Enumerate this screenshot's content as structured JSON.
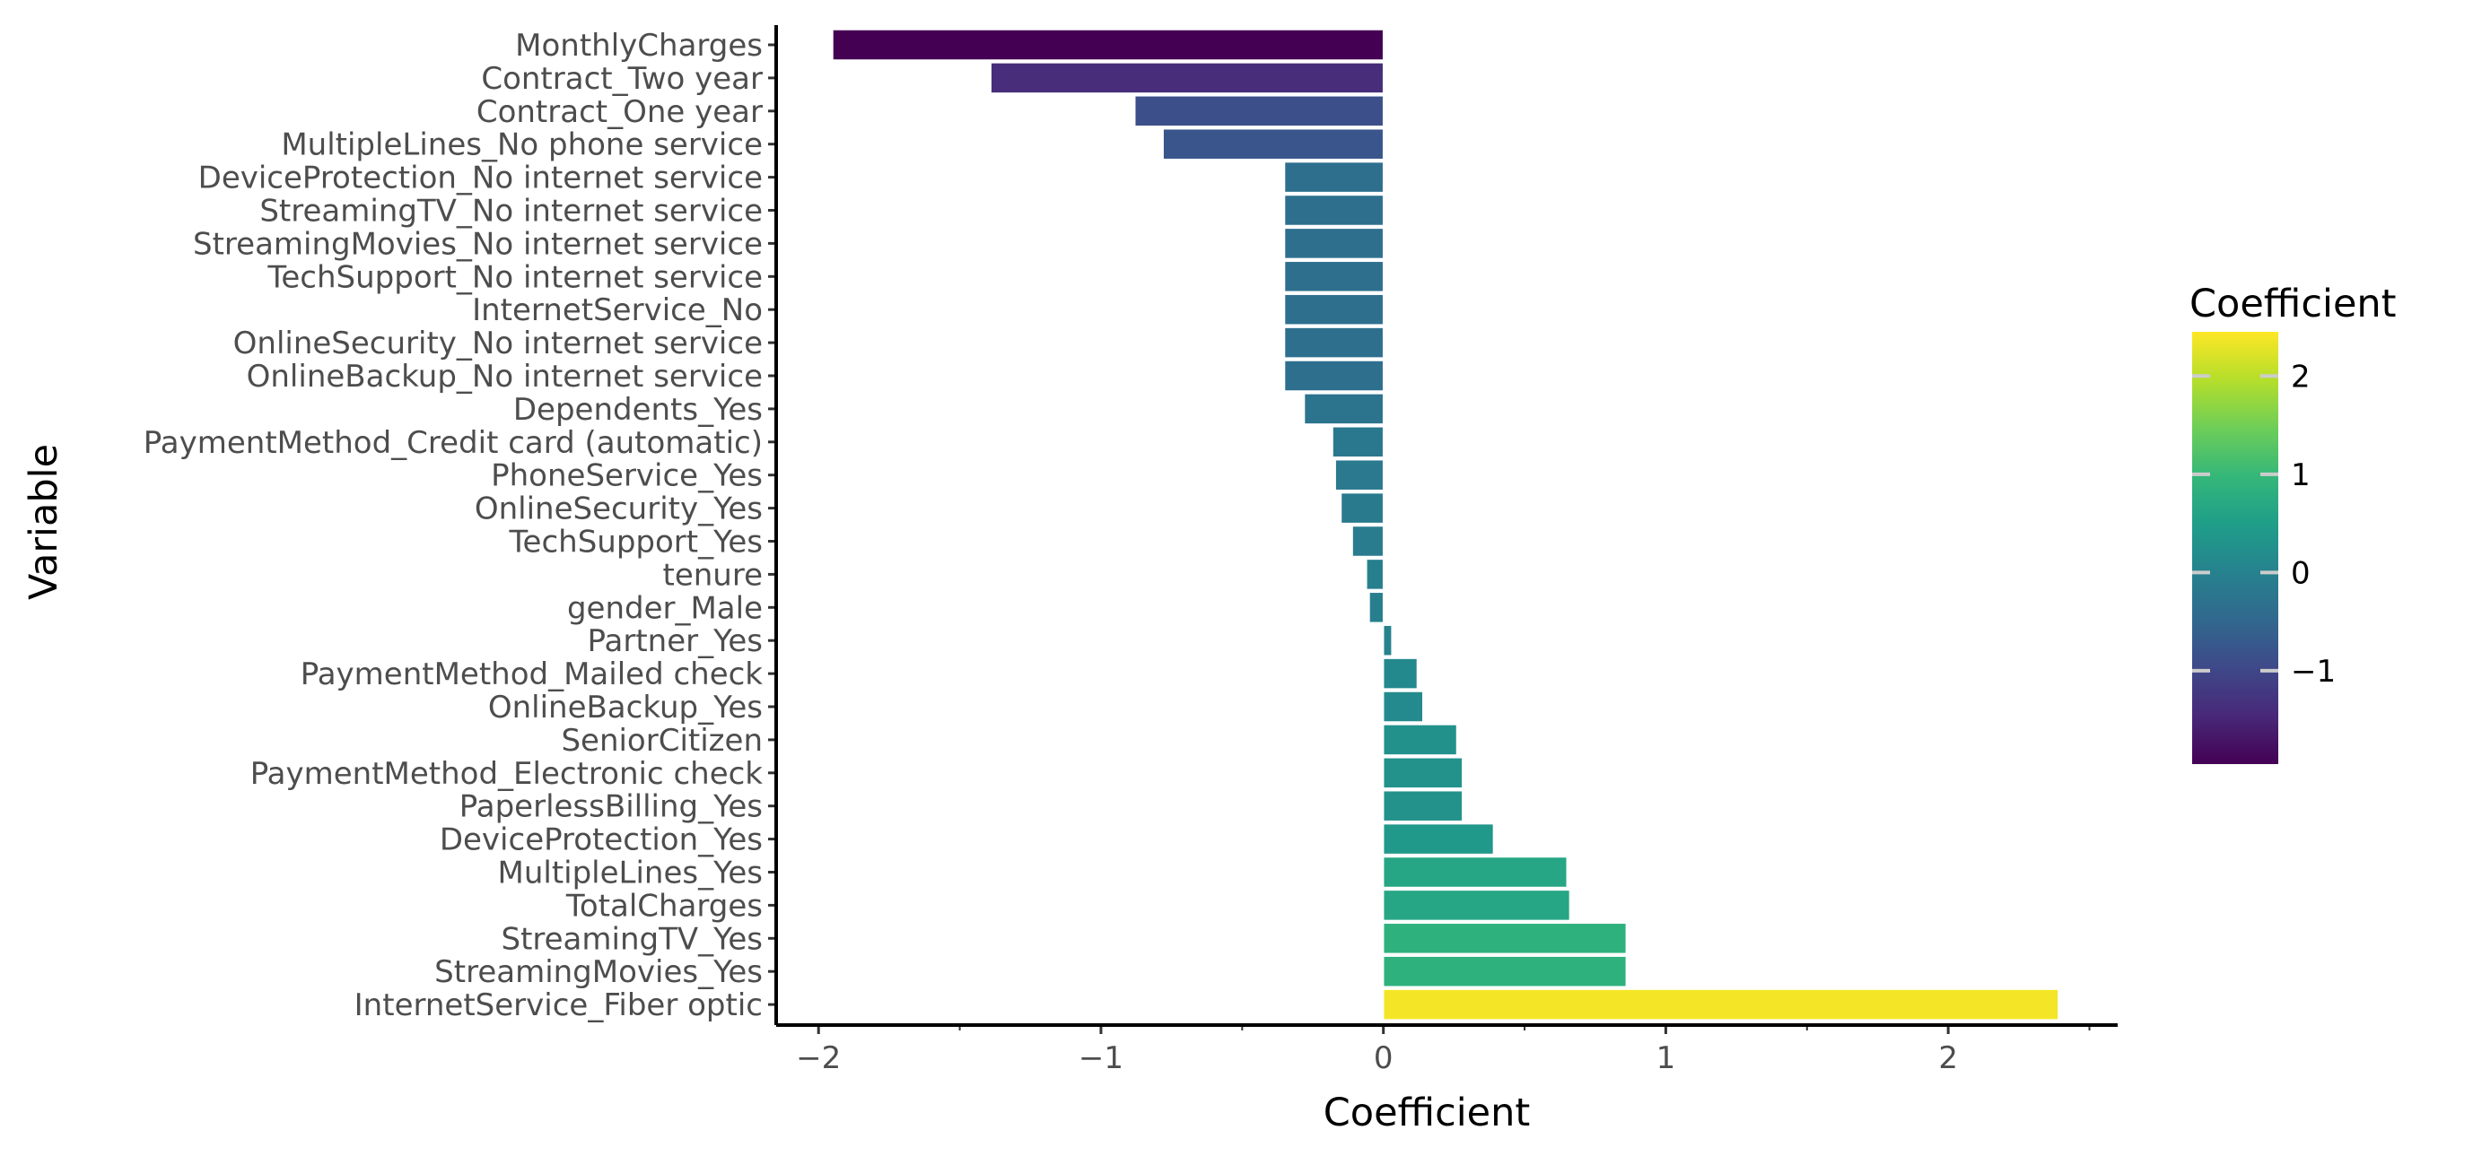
{
  "chart_data": {
    "type": "bar",
    "orientation": "horizontal",
    "xlabel": "Coefficient",
    "ylabel": "Variable",
    "xlim": [
      -2.15,
      2.6
    ],
    "x_ticks": [
      -2,
      -1,
      0,
      1,
      2
    ],
    "x_tick_labels": [
      "−2",
      "−1",
      "0",
      "1",
      "2"
    ],
    "grid": false,
    "categories": [
      "MonthlyCharges",
      "Contract_Two year",
      "Contract_One year",
      "MultipleLines_No phone service",
      "DeviceProtection_No internet service",
      "StreamingTV_No internet service",
      "StreamingMovies_No internet service",
      "TechSupport_No internet service",
      "InternetService_No",
      "OnlineSecurity_No internet service",
      "OnlineBackup_No internet service",
      "Dependents_Yes",
      "PaymentMethod_Credit card (automatic)",
      "PhoneService_Yes",
      "OnlineSecurity_Yes",
      "TechSupport_Yes",
      "tenure",
      "gender_Male",
      "Partner_Yes",
      "PaymentMethod_Mailed check",
      "OnlineBackup_Yes",
      "SeniorCitizen",
      "PaymentMethod_Electronic check",
      "PaperlessBilling_Yes",
      "DeviceProtection_Yes",
      "MultipleLines_Yes",
      "TotalCharges",
      "StreamingTV_Yes",
      "StreamingMovies_Yes",
      "InternetService_Fiber optic"
    ],
    "values": [
      -1.95,
      -1.39,
      -0.88,
      -0.78,
      -0.35,
      -0.35,
      -0.35,
      -0.35,
      -0.35,
      -0.35,
      -0.35,
      -0.28,
      -0.18,
      -0.17,
      -0.15,
      -0.11,
      -0.06,
      -0.05,
      0.03,
      0.12,
      0.14,
      0.26,
      0.28,
      0.28,
      0.39,
      0.65,
      0.66,
      0.86,
      0.86,
      2.39
    ],
    "legend": {
      "title": "Coefficient",
      "placement": "right",
      "type": "colorbar",
      "colormap": "viridis",
      "range": [
        -1.95,
        2.45
      ],
      "ticks": [
        -1,
        0,
        1,
        2
      ],
      "tick_labels": [
        "−1",
        "0",
        "1",
        "2"
      ]
    },
    "colors": {
      "bar_outline": "#ffffff",
      "axis_line": "#000000",
      "tick_text": "#4d4d4d",
      "colorbar_tick": "#cccccc",
      "viridis_stops": [
        "#440154",
        "#482878",
        "#3e4989",
        "#31688e",
        "#26828e",
        "#1f9e89",
        "#35b779",
        "#6ece58",
        "#b5de2b",
        "#fde725"
      ]
    }
  }
}
